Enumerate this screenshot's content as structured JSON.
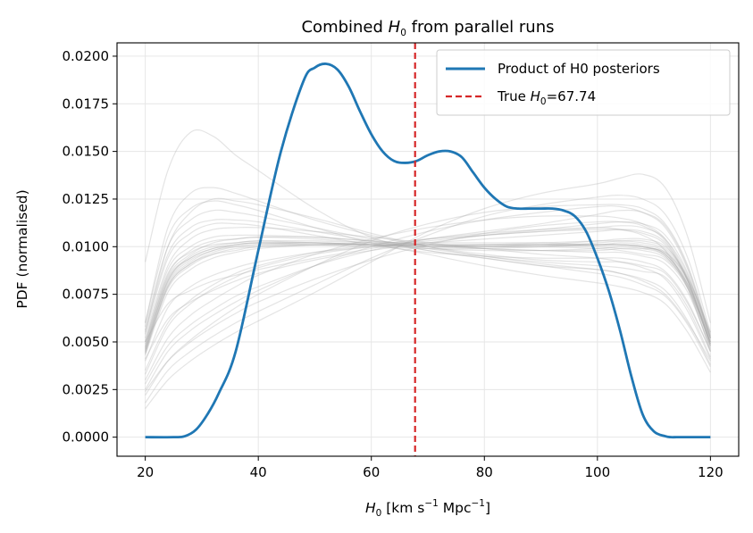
{
  "chart_data": {
    "type": "line",
    "title": "Combined H0 from parallel runs",
    "title_parts": {
      "prefix": "Combined ",
      "var": "H",
      "sub": "0",
      "suffix": " from parallel runs"
    },
    "xlabel": "H0 [km s^-1 Mpc^-1]",
    "xlabel_parts": {
      "var": "H",
      "sub": "0",
      "unit_a": " [km s",
      "sup_a": "−1",
      "unit_b": " Mpc",
      "sup_b": "−1",
      "close": "]"
    },
    "ylabel": "PDF (normalised)",
    "xlim": [
      15,
      125
    ],
    "ylim": [
      -0.001,
      0.0207
    ],
    "xticks": [
      20,
      40,
      60,
      80,
      100,
      120
    ],
    "xtick_labels": [
      "20",
      "40",
      "60",
      "80",
      "100",
      "120"
    ],
    "yticks": [
      0.0,
      0.0025,
      0.005,
      0.0075,
      0.01,
      0.0125,
      0.015,
      0.0175,
      0.02
    ],
    "ytick_labels": [
      "0.0000",
      "0.0025",
      "0.0050",
      "0.0075",
      "0.0100",
      "0.0125",
      "0.0150",
      "0.0175",
      "0.0200"
    ],
    "grid": true,
    "legend_position": "top-right",
    "legend": [
      {
        "label": "Product of H0 posteriors",
        "style": "solid",
        "color": "#1f77b4"
      },
      {
        "label_prefix": "True ",
        "label_var": "H",
        "label_sub": "0",
        "label_suffix": "=67.74",
        "label": "True H0=67.74",
        "style": "dashed",
        "color": "#d62728"
      }
    ],
    "true_h0": 67.74,
    "product": {
      "name": "Product of H0 posteriors",
      "color": "#1f77b4",
      "x": [
        20,
        25,
        27,
        29,
        31,
        33,
        36,
        40,
        44,
        48,
        50,
        52,
        54,
        56,
        58,
        60,
        62,
        64,
        66,
        68,
        70,
        72,
        74,
        76,
        78,
        80,
        82,
        84,
        86,
        88,
        90,
        92,
        94,
        96,
        98,
        100,
        102,
        104,
        106,
        108,
        110,
        112,
        113,
        114,
        116,
        120
      ],
      "y": [
        0.0,
        0.0,
        5e-05,
        0.0004,
        0.0012,
        0.0023,
        0.0045,
        0.0098,
        0.015,
        0.0187,
        0.0194,
        0.0196,
        0.0193,
        0.0184,
        0.0171,
        0.0159,
        0.015,
        0.0145,
        0.0144,
        0.0145,
        0.0148,
        0.015,
        0.015,
        0.0147,
        0.0139,
        0.0131,
        0.0125,
        0.0121,
        0.012,
        0.012,
        0.012,
        0.012,
        0.0119,
        0.0116,
        0.0108,
        0.0094,
        0.0077,
        0.0056,
        0.0032,
        0.0012,
        0.0003,
        5e-05,
        0.0,
        0.0,
        0.0,
        0.0
      ]
    },
    "runs": {
      "color": "#aaaaaa",
      "x": [
        20,
        24,
        28,
        32,
        36,
        40,
        50,
        60,
        70,
        80,
        90,
        100,
        104,
        108,
        112,
        116,
        120
      ],
      "series": [
        {
          "values": [
            0.0092,
            0.014,
            0.016,
            0.0158,
            0.0148,
            0.014,
            0.012,
            0.0105,
            0.0098,
            0.0094,
            0.009,
            0.0088,
            0.0086,
            0.0082,
            0.0075,
            0.006,
            0.004
          ]
        },
        {
          "values": [
            0.006,
            0.011,
            0.0128,
            0.0131,
            0.0128,
            0.0124,
            0.0114,
            0.0106,
            0.01,
            0.0096,
            0.0093,
            0.0092,
            0.0092,
            0.009,
            0.0086,
            0.007,
            0.0045
          ]
        },
        {
          "values": [
            0.0055,
            0.01,
            0.0118,
            0.0125,
            0.0124,
            0.0122,
            0.0115,
            0.0107,
            0.01,
            0.0095,
            0.0092,
            0.009,
            0.0089,
            0.0087,
            0.0084,
            0.0068,
            0.0042
          ]
        },
        {
          "values": [
            0.005,
            0.0088,
            0.01,
            0.0105,
            0.0106,
            0.0106,
            0.0105,
            0.0103,
            0.0101,
            0.01,
            0.01,
            0.0099,
            0.0098,
            0.0096,
            0.0093,
            0.0078,
            0.005
          ]
        },
        {
          "values": [
            0.0048,
            0.0085,
            0.0098,
            0.0103,
            0.0104,
            0.0105,
            0.0104,
            0.0102,
            0.01,
            0.01,
            0.0101,
            0.0101,
            0.0101,
            0.01,
            0.0096,
            0.008,
            0.0052
          ]
        },
        {
          "values": [
            0.0046,
            0.0082,
            0.0095,
            0.01,
            0.0102,
            0.0103,
            0.0103,
            0.0102,
            0.0101,
            0.01,
            0.01,
            0.0101,
            0.0102,
            0.0101,
            0.0097,
            0.0081,
            0.005
          ]
        },
        {
          "values": [
            0.0045,
            0.008,
            0.0092,
            0.0098,
            0.01,
            0.0101,
            0.0102,
            0.0101,
            0.01,
            0.0101,
            0.0102,
            0.0103,
            0.0103,
            0.0102,
            0.0098,
            0.0082,
            0.0052
          ]
        },
        {
          "values": [
            0.0044,
            0.0078,
            0.009,
            0.0096,
            0.0099,
            0.01,
            0.0101,
            0.0101,
            0.0101,
            0.0101,
            0.0101,
            0.0101,
            0.0101,
            0.01,
            0.0096,
            0.008,
            0.0049
          ]
        },
        {
          "values": [
            0.005,
            0.0086,
            0.0097,
            0.0101,
            0.0102,
            0.0103,
            0.0102,
            0.0101,
            0.0099,
            0.0098,
            0.0098,
            0.0099,
            0.01,
            0.0099,
            0.0095,
            0.0079,
            0.0048
          ]
        },
        {
          "values": [
            0.0047,
            0.0083,
            0.0094,
            0.0099,
            0.0101,
            0.0102,
            0.0101,
            0.01,
            0.0099,
            0.0099,
            0.01,
            0.0102,
            0.0103,
            0.0103,
            0.0099,
            0.0083,
            0.0053
          ]
        },
        {
          "values": [
            0.0043,
            0.0076,
            0.0088,
            0.0094,
            0.0097,
            0.0099,
            0.0101,
            0.0102,
            0.0102,
            0.0102,
            0.0102,
            0.0101,
            0.0101,
            0.01,
            0.0096,
            0.008,
            0.005
          ]
        },
        {
          "values": [
            0.0049,
            0.0084,
            0.0096,
            0.0102,
            0.0104,
            0.0105,
            0.0105,
            0.0103,
            0.0101,
            0.0099,
            0.0098,
            0.0097,
            0.0097,
            0.0095,
            0.0091,
            0.0076,
            0.0047
          ]
        },
        {
          "values": [
            0.0046,
            0.0081,
            0.0093,
            0.0098,
            0.0101,
            0.0102,
            0.0102,
            0.0101,
            0.01,
            0.01,
            0.0101,
            0.0103,
            0.0104,
            0.0104,
            0.01,
            0.0084,
            0.0054
          ]
        },
        {
          "values": [
            0.0044,
            0.0079,
            0.0091,
            0.0097,
            0.01,
            0.0101,
            0.0101,
            0.0101,
            0.0101,
            0.0101,
            0.0101,
            0.01,
            0.0099,
            0.0098,
            0.0094,
            0.0079,
            0.0049
          ]
        },
        {
          "values": [
            0.0035,
            0.006,
            0.0072,
            0.008,
            0.0086,
            0.009,
            0.0097,
            0.0101,
            0.0104,
            0.0106,
            0.0108,
            0.0109,
            0.0109,
            0.0107,
            0.0101,
            0.0082,
            0.005
          ]
        },
        {
          "values": [
            0.0025,
            0.0045,
            0.0056,
            0.0064,
            0.0071,
            0.0077,
            0.009,
            0.01,
            0.0108,
            0.0114,
            0.0118,
            0.0121,
            0.0121,
            0.0118,
            0.011,
            0.0088,
            0.0052
          ]
        },
        {
          "values": [
            0.0018,
            0.0035,
            0.0045,
            0.0053,
            0.006,
            0.0066,
            0.008,
            0.0094,
            0.0106,
            0.0116,
            0.0122,
            0.0126,
            0.0127,
            0.0125,
            0.0117,
            0.0094,
            0.0055
          ]
        },
        {
          "values": [
            0.0015,
            0.003,
            0.004,
            0.0048,
            0.0055,
            0.0061,
            0.0076,
            0.0092,
            0.0108,
            0.012,
            0.0128,
            0.0133,
            0.0136,
            0.0138,
            0.0131,
            0.0105,
            0.006
          ]
        },
        {
          "values": [
            0.003,
            0.0052,
            0.0064,
            0.0072,
            0.0079,
            0.0085,
            0.0096,
            0.0104,
            0.011,
            0.0114,
            0.0116,
            0.0116,
            0.0115,
            0.0112,
            0.0104,
            0.0083,
            0.0049
          ]
        },
        {
          "values": [
            0.0022,
            0.004,
            0.0051,
            0.006,
            0.0068,
            0.0075,
            0.009,
            0.0103,
            0.0112,
            0.0118,
            0.0121,
            0.0122,
            0.0122,
            0.012,
            0.0112,
            0.009,
            0.0053
          ]
        },
        {
          "values": [
            0.006,
            0.0105,
            0.012,
            0.0124,
            0.0122,
            0.0119,
            0.011,
            0.0102,
            0.0096,
            0.009,
            0.0085,
            0.0081,
            0.0079,
            0.0076,
            0.007,
            0.0055,
            0.0034
          ]
        },
        {
          "values": [
            0.0058,
            0.01,
            0.0114,
            0.0119,
            0.0118,
            0.0116,
            0.011,
            0.0104,
            0.0099,
            0.0095,
            0.0091,
            0.0088,
            0.0086,
            0.0083,
            0.0077,
            0.0061,
            0.0038
          ]
        },
        {
          "values": [
            0.0056,
            0.0096,
            0.011,
            0.0114,
            0.0114,
            0.0113,
            0.0108,
            0.0103,
            0.0098,
            0.0094,
            0.009,
            0.0086,
            0.0084,
            0.008,
            0.0074,
            0.0059,
            0.0037
          ]
        },
        {
          "values": [
            0.0052,
            0.009,
            0.0104,
            0.0109,
            0.011,
            0.011,
            0.0108,
            0.0105,
            0.0102,
            0.0099,
            0.0096,
            0.0094,
            0.0092,
            0.0089,
            0.0083,
            0.0066,
            0.0041
          ]
        },
        {
          "values": [
            0.005,
            0.007,
            0.0077,
            0.0082,
            0.0085,
            0.0088,
            0.0094,
            0.0099,
            0.0104,
            0.0107,
            0.0109,
            0.011,
            0.0109,
            0.0106,
            0.0098,
            0.0078,
            0.0046
          ]
        },
        {
          "values": [
            0.004,
            0.0068,
            0.0079,
            0.0085,
            0.0089,
            0.0092,
            0.0097,
            0.01,
            0.0102,
            0.0104,
            0.0106,
            0.0108,
            0.0109,
            0.0108,
            0.0102,
            0.0082,
            0.0048
          ]
        },
        {
          "values": [
            0.0028,
            0.0048,
            0.0059,
            0.0067,
            0.0074,
            0.0079,
            0.009,
            0.0098,
            0.0104,
            0.0108,
            0.0112,
            0.0117,
            0.0119,
            0.0118,
            0.0111,
            0.0089,
            0.0052
          ]
        },
        {
          "values": [
            0.0054,
            0.0094,
            0.0107,
            0.0112,
            0.0112,
            0.0111,
            0.0106,
            0.0101,
            0.0097,
            0.0095,
            0.0094,
            0.0094,
            0.0094,
            0.0092,
            0.0087,
            0.0071,
            0.0045
          ]
        },
        {
          "values": [
            0.0047,
            0.0082,
            0.0094,
            0.0099,
            0.0101,
            0.0102,
            0.0102,
            0.0101,
            0.01,
            0.0099,
            0.0098,
            0.0098,
            0.0099,
            0.0099,
            0.0097,
            0.0083,
            0.0055
          ]
        },
        {
          "values": [
            0.0045,
            0.0079,
            0.0091,
            0.0096,
            0.0098,
            0.01,
            0.0101,
            0.0101,
            0.0101,
            0.0101,
            0.0101,
            0.0101,
            0.0101,
            0.01,
            0.0095,
            0.0078,
            0.0045
          ]
        },
        {
          "values": [
            0.0033,
            0.0058,
            0.007,
            0.0078,
            0.0084,
            0.0089,
            0.0096,
            0.01,
            0.0103,
            0.0106,
            0.0108,
            0.011,
            0.0111,
            0.011,
            0.0104,
            0.0085,
            0.0052
          ]
        },
        {
          "values": [
            0.0024,
            0.004,
            0.005,
            0.0058,
            0.0065,
            0.0071,
            0.0083,
            0.0093,
            0.0101,
            0.0107,
            0.0111,
            0.0113,
            0.0113,
            0.0111,
            0.0103,
            0.0082,
            0.0048
          ]
        },
        {
          "values": [
            0.0041,
            0.0062,
            0.0071,
            0.0077,
            0.0082,
            0.0086,
            0.0093,
            0.0098,
            0.0102,
            0.0106,
            0.0109,
            0.0112,
            0.0113,
            0.0112,
            0.0106,
            0.0086,
            0.0051
          ]
        }
      ]
    }
  }
}
